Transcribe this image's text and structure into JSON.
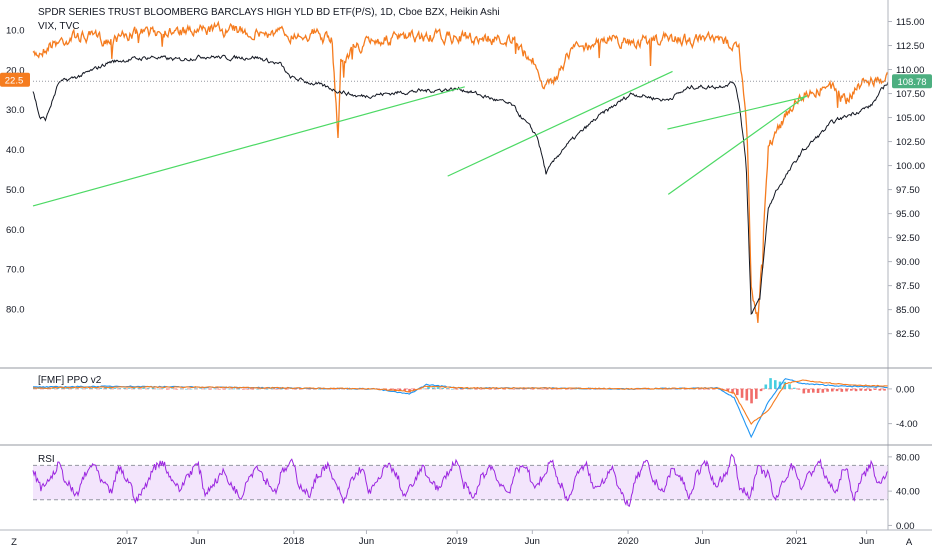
{
  "header": {
    "title": "SPDR SERIES TRUST BLOOMBERG BARCLAYS HIGH YLD BD ETF(P/S), 1D, Cboe BZX, Heikin Ashi",
    "subtitle": "VIX, TVC"
  },
  "colors": {
    "price": "#131722",
    "vix": "#f57c1f",
    "trendline": "#4cd964",
    "ppo_fast": "#2196f3",
    "ppo_slow": "#f57c1f",
    "hist_pos": "#26c6da",
    "hist_neg": "#ef5350",
    "rsi": "#9c27e0",
    "rsi_band": "#f3e5fc",
    "badge_price": "#4caf80",
    "badge_vix": "#f57c1f"
  },
  "badges": {
    "price_last": "108.78",
    "vix_last": "22.5"
  },
  "corner_labels": {
    "left": "Z",
    "right": "A"
  },
  "panes": {
    "ppo_title": "[FMF] PPO v2",
    "rsi_title": "RSI"
  },
  "chart_data": [
    {
      "type": "line",
      "title": "SPDR SERIES TRUST BLOOMBERG BARCLAYS HIGH YLD BD ETF(P/S), 1D, Cboe BZX, Heikin Ashi",
      "x_ticks": [
        "2017",
        "Jun",
        "2018",
        "Jun",
        "2019",
        "Jun",
        "2020",
        "Jun",
        "2021",
        "Jun"
      ],
      "right_axis": {
        "ticks": [
          "115.00",
          "112.50",
          "110.00",
          "107.50",
          "105.00",
          "102.50",
          "100.00",
          "97.50",
          "95.00",
          "92.50",
          "90.00",
          "87.50",
          "85.00",
          "82.50"
        ],
        "ylim": [
          80.9,
          116.2
        ]
      },
      "left_axis": {
        "ticks": [
          "10.0",
          "20.0",
          "30.0",
          "40.0",
          "50.0",
          "60.0",
          "70.0",
          "80.0"
        ],
        "ylim": [
          5,
          90
        ],
        "inverted": true
      },
      "series": [
        {
          "name": "",
          "axis": "right",
          "x": [
            0,
            0.008,
            0.015,
            0.03,
            0.06,
            0.09,
            0.11,
            0.14,
            0.17,
            0.2,
            0.23,
            0.26,
            0.29,
            0.3,
            0.33,
            0.38,
            0.44,
            0.5,
            0.56,
            0.59,
            0.6,
            0.62,
            0.66,
            0.7,
            0.74,
            0.77,
            0.8,
            0.82,
            0.826,
            0.834,
            0.84,
            0.85,
            0.86,
            0.87,
            0.9,
            0.935,
            0.96,
            0.98,
            1.0
          ],
          "values": [
            107.8,
            105.0,
            104.8,
            108.6,
            109.5,
            110.8,
            111.0,
            111.3,
            111.0,
            111.4,
            111.2,
            111.3,
            110.5,
            109.2,
            108.5,
            107.2,
            107.7,
            108.0,
            106.3,
            103.0,
            99.2,
            101.8,
            105.0,
            107.5,
            106.8,
            108.2,
            108.2,
            108.7,
            106.5,
            100.5,
            84.7,
            86.0,
            95.5,
            97.5,
            101.5,
            104.5,
            105.5,
            106.2,
            108.78
          ]
        },
        {
          "name": "",
          "axis": "left",
          "x": [
            0,
            0.02,
            0.05,
            0.09,
            0.12,
            0.15,
            0.18,
            0.21,
            0.25,
            0.29,
            0.33,
            0.35,
            0.357,
            0.36,
            0.37,
            0.4,
            0.46,
            0.52,
            0.56,
            0.59,
            0.6,
            0.63,
            0.67,
            0.7,
            0.75,
            0.8,
            0.82,
            0.826,
            0.835,
            0.84,
            0.848,
            0.86,
            0.88,
            0.9,
            0.93,
            0.95,
            0.97,
            1.0
          ],
          "values": [
            16.8,
            13.5,
            11.5,
            12.5,
            11.0,
            10.2,
            10.8,
            9.8,
            10.5,
            11.0,
            11.0,
            13.0,
            37.0,
            17.5,
            15.5,
            12.5,
            11.8,
            12.0,
            12.5,
            19.0,
            25.0,
            15.0,
            12.5,
            13.0,
            12.2,
            12.8,
            13.5,
            14.5,
            35.0,
            75.0,
            83.0,
            40.0,
            31.0,
            26.0,
            24.0,
            28.0,
            23.0,
            22.5
          ]
        }
      ],
      "trendlines": [
        {
          "axis": "right",
          "x": [
            0.0,
            0.647
          ],
          "values": [
            95.8,
            108.2
          ]
        },
        {
          "axis": "right",
          "x": [
            0.647,
            0.998
          ],
          "values": [
            98.9,
            109.8
          ]
        },
        {
          "axis": "right",
          "x": [
            0.998,
            1.0
          ],
          "values": [
            96.4,
            107.2
          ]
        }
      ]
    },
    {
      "type": "line",
      "title": "[FMF] PPO v2",
      "right_axis": {
        "ticks": [
          "0.00",
          "-4.00"
        ],
        "ylim": [
          -6.0,
          1.6
        ]
      },
      "series": [
        {
          "name": "",
          "x": [
            0,
            0.1,
            0.2,
            0.3,
            0.4,
            0.44,
            0.46,
            0.5,
            0.6,
            0.7,
            0.8,
            0.82,
            0.84,
            0.86,
            0.88,
            0.9,
            0.95,
            1.0
          ],
          "values": [
            0.2,
            0.3,
            0.2,
            0.1,
            0.0,
            -0.6,
            0.5,
            0.1,
            0.1,
            0.0,
            0.1,
            -1.0,
            -5.5,
            -1.5,
            1.2,
            0.6,
            0.3,
            0.2
          ]
        },
        {
          "name": "",
          "x": [
            0,
            0.1,
            0.2,
            0.3,
            0.4,
            0.44,
            0.46,
            0.5,
            0.6,
            0.7,
            0.8,
            0.82,
            0.84,
            0.86,
            0.88,
            0.9,
            0.95,
            1.0
          ],
          "values": [
            0.1,
            0.2,
            0.2,
            0.1,
            0.0,
            -0.3,
            0.3,
            0.1,
            0.1,
            0.0,
            0.1,
            -0.5,
            -4.0,
            -2.5,
            0.6,
            1.0,
            0.5,
            0.3
          ]
        }
      ]
    },
    {
      "type": "line",
      "title": "RSI",
      "right_axis": {
        "ticks": [
          "80.00",
          "40.00",
          "0.00"
        ],
        "ylim": [
          -3,
          88
        ]
      },
      "band": [
        30,
        70
      ],
      "series": [
        {
          "name": "",
          "values": [
            62,
            44,
            55,
            70,
            48,
            35,
            58,
            72,
            50,
            40,
            66,
            52,
            30,
            45,
            68,
            74,
            55,
            42,
            60,
            71,
            38,
            50,
            62,
            47,
            33,
            57,
            69,
            52,
            40,
            64,
            73,
            45,
            36,
            58,
            70,
            49,
            28,
            55,
            66,
            40,
            52,
            72,
            60,
            35,
            48,
            67,
            54,
            42,
            61,
            75,
            46,
            32,
            57,
            69,
            50,
            39,
            63,
            71,
            44,
            55,
            76,
            48,
            30,
            60,
            70,
            43,
            52,
            68,
            38,
            25,
            58,
            73,
            50,
            41,
            65,
            55,
            34,
            62,
            72,
            47,
            57,
            80,
            42,
            36,
            66,
            60,
            30,
            54,
            70,
            45,
            61,
            74,
            52,
            39,
            69,
            33,
            56,
            71,
            48,
            64
          ]
        }
      ]
    }
  ]
}
